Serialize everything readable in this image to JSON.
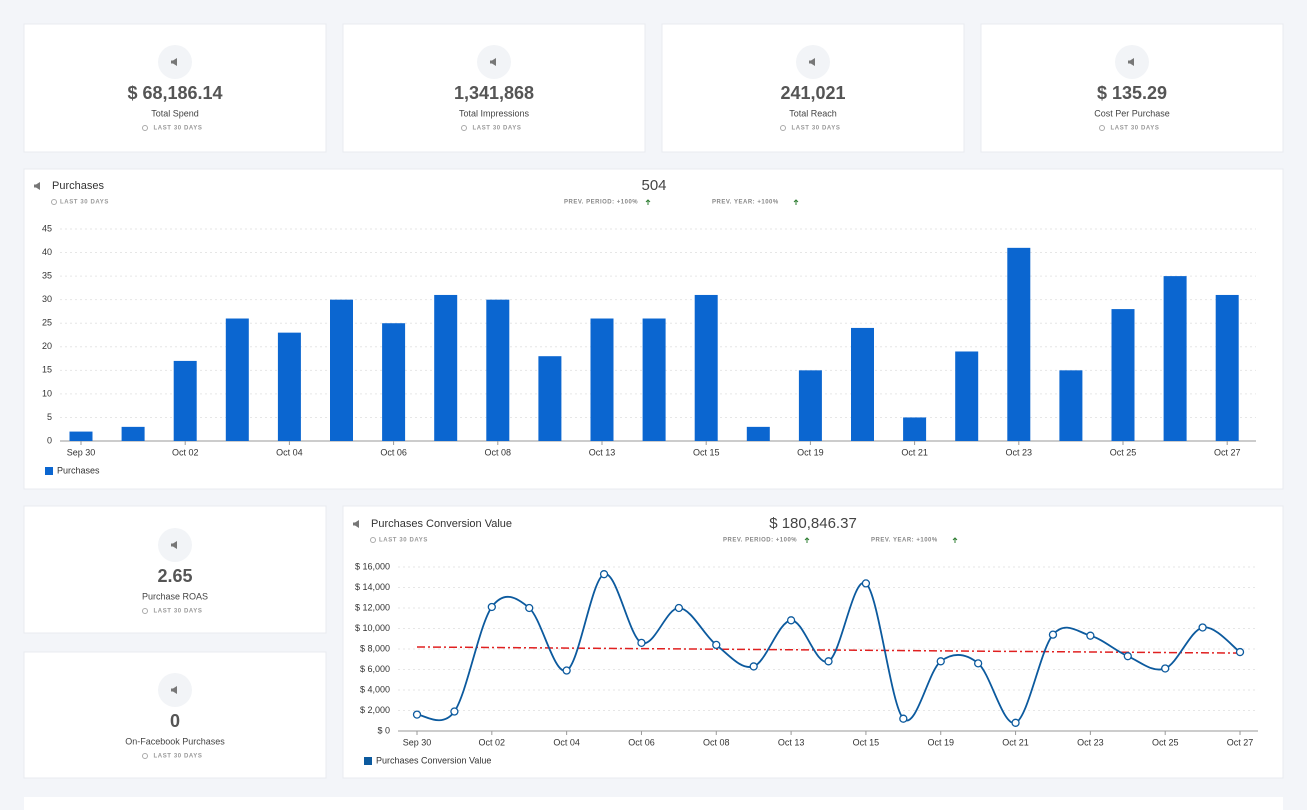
{
  "kpis": [
    {
      "value": "$ 68,186.14",
      "label": "Total Spend",
      "period": "LAST 30 DAYS"
    },
    {
      "value": "1,341,868",
      "label": "Total Impressions",
      "period": "LAST 30 DAYS"
    },
    {
      "value": "241,021",
      "label": "Total Reach",
      "period": "LAST 30 DAYS"
    },
    {
      "value": "$ 135.29",
      "label": "Cost Per Purchase",
      "period": "LAST 30 DAYS"
    }
  ],
  "side_kpis": [
    {
      "value": "2.65",
      "label": "Purchase ROAS",
      "period": "LAST 30 DAYS"
    },
    {
      "value": "0",
      "label": "On-Facebook Purchases",
      "period": "LAST 30 DAYS"
    }
  ],
  "chart_data": [
    {
      "type": "bar",
      "title": "Purchases",
      "period": "LAST 30 DAYS",
      "total": "504",
      "comparisons": [
        "PREV. PERIOD: +100%",
        "PREV. YEAR: +100%"
      ],
      "categories": [
        "Sep 30",
        null,
        "Oct 02",
        null,
        "Oct 04",
        null,
        "Oct 06",
        null,
        "Oct 08",
        null,
        "Oct 13",
        null,
        "Oct 15",
        null,
        "Oct 19",
        null,
        "Oct 21",
        null,
        "Oct 23",
        null,
        "Oct 25",
        null,
        "Oct 27"
      ],
      "series": [
        {
          "name": "Purchases",
          "color": "#0b66d0",
          "values": [
            2,
            3,
            17,
            26,
            23,
            30,
            25,
            31,
            30,
            18,
            26,
            26,
            31,
            3,
            15,
            24,
            5,
            19,
            41,
            15,
            28,
            35,
            31
          ]
        }
      ],
      "ylim": [
        0,
        45
      ],
      "yticks": [
        0,
        5,
        10,
        15,
        20,
        25,
        30,
        35,
        40,
        45
      ],
      "grid": true
    },
    {
      "type": "line",
      "title": "Purchases Conversion Value",
      "period": "LAST 30 DAYS",
      "total": "$ 180,846.37",
      "comparisons": [
        "PREV. PERIOD: +100%",
        "PREV. YEAR: +100%"
      ],
      "categories": [
        "Sep 30",
        null,
        "Oct 02",
        null,
        "Oct 04",
        null,
        "Oct 06",
        null,
        "Oct 08",
        null,
        "Oct 13",
        null,
        "Oct 15",
        null,
        "Oct 19",
        null,
        "Oct 21",
        null,
        "Oct 23",
        null,
        "Oct 25",
        null,
        "Oct 27"
      ],
      "series": [
        {
          "name": "Purchases Conversion Value",
          "color": "#0c5a9e",
          "values": [
            1600,
            1900,
            12100,
            12000,
            5900,
            15300,
            8600,
            12000,
            8400,
            6300,
            10800,
            6800,
            14400,
            1200,
            6800,
            6600,
            800,
            9400,
            9300,
            7300,
            6100,
            10100,
            7700
          ]
        }
      ],
      "trendline": {
        "values": [
          8200,
          7600
        ],
        "color": "#e02020"
      },
      "ylim": [
        0,
        16000
      ],
      "yticks": [
        {
          "value": 0,
          "label": "$ 0"
        },
        {
          "value": 2000,
          "label": "$ 2,000"
        },
        {
          "value": 4000,
          "label": "$ 4,000"
        },
        {
          "value": 6000,
          "label": "$ 6,000"
        },
        {
          "value": 8000,
          "label": "$ 8,000"
        },
        {
          "value": 10000,
          "label": "$ 10,000"
        },
        {
          "value": 12000,
          "label": "$ 12,000"
        },
        {
          "value": 14000,
          "label": "$ 14,000"
        },
        {
          "value": 16000,
          "label": "$ 16,000"
        }
      ],
      "grid": true
    }
  ]
}
